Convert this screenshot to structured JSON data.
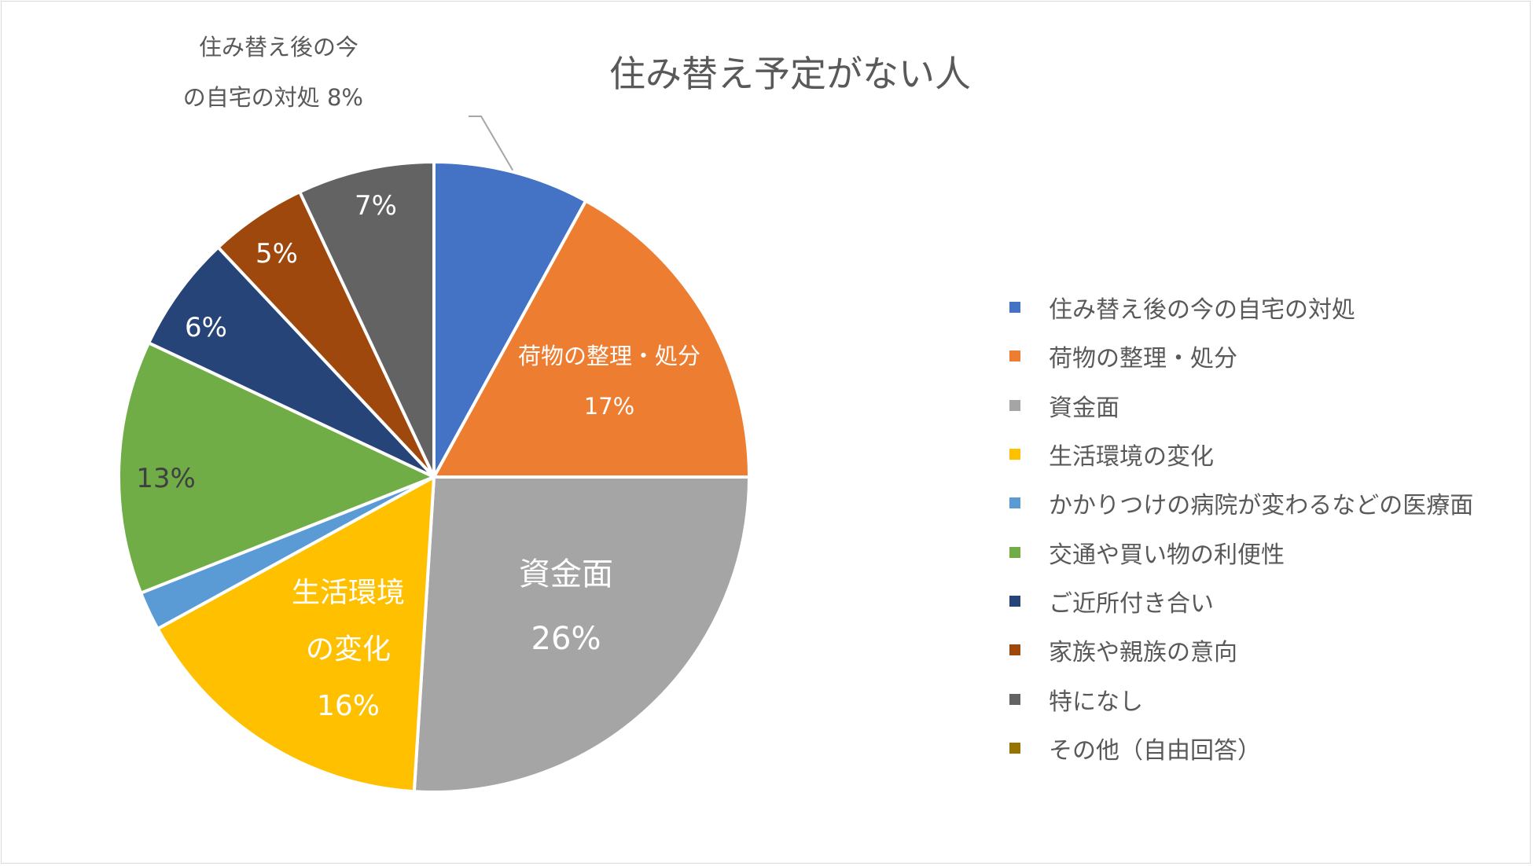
{
  "chart_data": {
    "type": "pie",
    "title": "住み替え予定がない人",
    "legend_position": "right",
    "slices": [
      {
        "label": "住み替え後の今の自宅の対処",
        "value": 8,
        "color": "#4472C4",
        "data_label": [
          "住み替え後の今",
          "の自宅の対処 8%"
        ]
      },
      {
        "label": "荷物の整理・処分",
        "value": 17,
        "color": "#ED7D31",
        "data_label": [
          "荷物の整理・処分",
          "17%"
        ]
      },
      {
        "label": "資金面",
        "value": 26,
        "color": "#A5A5A5",
        "data_label": [
          "資金面",
          "26%"
        ]
      },
      {
        "label": "生活環境の変化",
        "value": 16,
        "color": "#FFC000",
        "data_label": [
          "生活環境",
          "の変化",
          "16%"
        ]
      },
      {
        "label": "かかりつけの病院が変わるなどの医療面",
        "value": 2,
        "color": "#5B9BD5",
        "data_label": []
      },
      {
        "label": "交通や買い物の利便性",
        "value": 13,
        "color": "#70AD47",
        "data_label": [
          "13%"
        ]
      },
      {
        "label": "ご近所付き合い",
        "value": 6,
        "color": "#264478",
        "data_label": [
          "6%"
        ]
      },
      {
        "label": "家族や親族の意向",
        "value": 5,
        "color": "#9E480E",
        "data_label": [
          "5%"
        ]
      },
      {
        "label": "特になし",
        "value": 7,
        "color": "#636363",
        "data_label": [
          "7%"
        ]
      },
      {
        "label": "その他（自由回答）",
        "value": 0,
        "color": "#997300",
        "data_label": []
      }
    ]
  }
}
